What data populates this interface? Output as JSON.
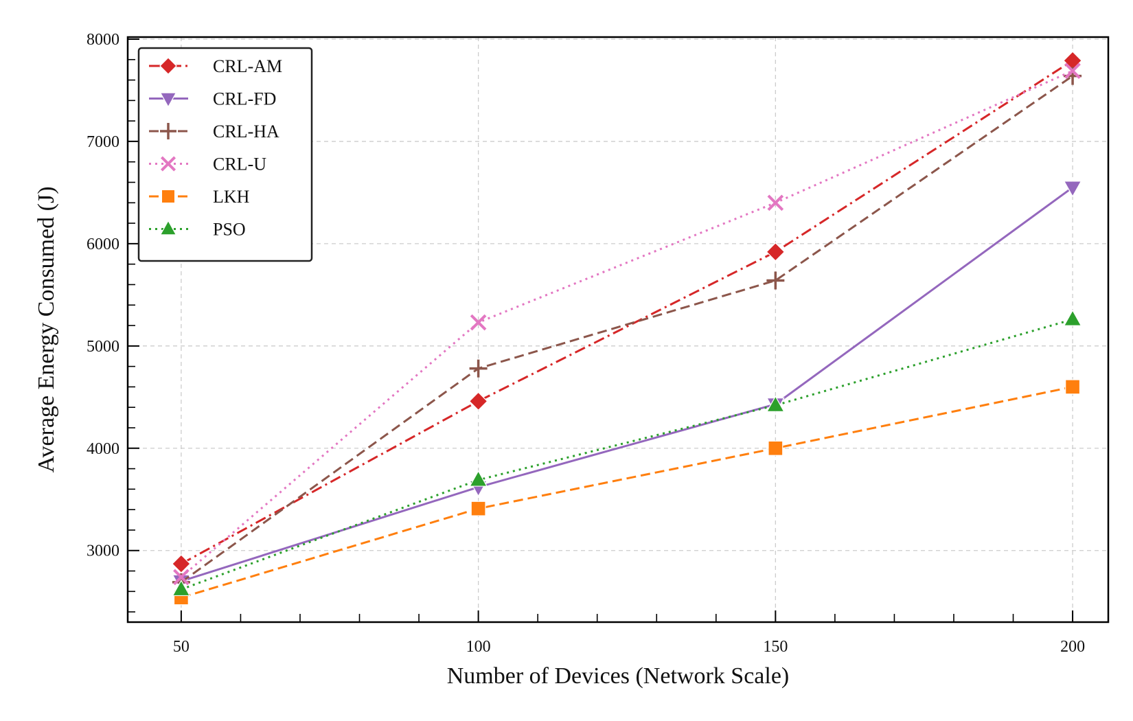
{
  "chart_data": {
    "type": "line",
    "xlabel": "Number of Devices (Network Scale)",
    "ylabel": "Average Energy Consumed (J)",
    "x": [
      50,
      100,
      150,
      200
    ],
    "xticks": [
      "50",
      "100",
      "150",
      "200"
    ],
    "yticks": [
      "3000",
      "4000",
      "5000",
      "6000",
      "7000",
      "8000"
    ],
    "xlim": [
      41,
      206
    ],
    "ylim": [
      2300,
      8020
    ],
    "grid": true,
    "legend_position": "top-left",
    "series": [
      {
        "name": "CRL-AM",
        "values": [
          2870,
          4460,
          5920,
          7790
        ],
        "color": "#d62728",
        "marker": "diamond",
        "line_style": "dashdot"
      },
      {
        "name": "CRL-FD",
        "values": [
          2700,
          3620,
          4430,
          6550
        ],
        "color": "#9467bd",
        "marker": "triangle-down",
        "line_style": "solid"
      },
      {
        "name": "CRL-HA",
        "values": [
          2690,
          4780,
          5640,
          7640
        ],
        "color": "#8c564b",
        "marker": "plus",
        "line_style": "dashed"
      },
      {
        "name": "CRL-U",
        "values": [
          2740,
          5230,
          6400,
          7690
        ],
        "color": "#e377c2",
        "marker": "x",
        "line_style": "dotted"
      },
      {
        "name": "LKH",
        "values": [
          2540,
          3410,
          4000,
          4600
        ],
        "color": "#ff7f0e",
        "marker": "square",
        "line_style": "dashed"
      },
      {
        "name": "PSO",
        "values": [
          2620,
          3690,
          4420,
          5260
        ],
        "color": "#2ca02c",
        "marker": "triangle-up",
        "line_style": "dotted"
      }
    ]
  }
}
